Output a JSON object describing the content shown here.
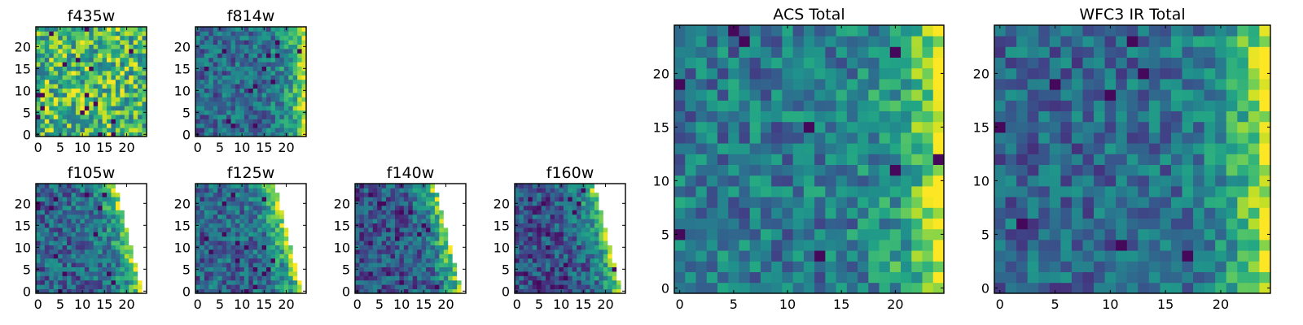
{
  "figure": {
    "colormap": "viridis",
    "nan_color": "#ffffff",
    "frame_color": "#000000",
    "background": "#ffffff"
  },
  "chart_data": [
    {
      "type": "heatmap",
      "id": "f435w",
      "title": "f435w",
      "grid": [
        25,
        25
      ],
      "xlim": [
        0,
        24
      ],
      "ylim": [
        0,
        24
      ],
      "grid_lines": false,
      "xticks": [
        0,
        5,
        10,
        15,
        20
      ],
      "yticks": [
        0,
        5,
        10,
        15,
        20
      ],
      "pattern": "noisy",
      "mean": 0.68,
      "noise": 0.32,
      "gradient": 0.0
    },
    {
      "type": "heatmap",
      "id": "f814w",
      "title": "f814w",
      "grid": [
        25,
        25
      ],
      "xlim": [
        0,
        24
      ],
      "ylim": [
        0,
        24
      ],
      "grid_lines": false,
      "xticks": [
        0,
        5,
        10,
        15,
        20
      ],
      "yticks": [
        0,
        5,
        10,
        15,
        20
      ],
      "pattern": "right-bright",
      "mean": 0.42,
      "noise": 0.22,
      "gradient": 0.6
    },
    {
      "type": "heatmap",
      "id": "f105w",
      "title": "f105w",
      "grid": [
        25,
        25
      ],
      "xlim": [
        0,
        24
      ],
      "ylim": [
        0,
        24
      ],
      "grid_lines": false,
      "xticks": [
        0,
        5,
        10,
        15,
        20
      ],
      "yticks": [
        0,
        5,
        10,
        15,
        20
      ],
      "pattern": "right-bright-masked",
      "mean": 0.4,
      "noise": 0.22,
      "gradient": 0.7,
      "masked_edge_x_at_bottom": 24,
      "masked_edge_x_at_top": 18
    },
    {
      "type": "heatmap",
      "id": "f125w",
      "title": "f125w",
      "grid": [
        25,
        25
      ],
      "xlim": [
        0,
        24
      ],
      "ylim": [
        0,
        24
      ],
      "grid_lines": false,
      "xticks": [
        0,
        5,
        10,
        15,
        20
      ],
      "yticks": [
        0,
        5,
        10,
        15,
        20
      ],
      "pattern": "right-bright-masked",
      "mean": 0.4,
      "noise": 0.22,
      "gradient": 0.7,
      "masked_edge_x_at_bottom": 24,
      "masked_edge_x_at_top": 18
    },
    {
      "type": "heatmap",
      "id": "f140w",
      "title": "f140w",
      "grid": [
        25,
        25
      ],
      "xlim": [
        0,
        24
      ],
      "ylim": [
        0,
        24
      ],
      "grid_lines": false,
      "xticks": [
        0,
        5,
        10,
        15,
        20
      ],
      "yticks": [
        0,
        5,
        10,
        15,
        20
      ],
      "pattern": "right-bright-masked",
      "mean": 0.33,
      "noise": 0.22,
      "gradient": 0.75,
      "masked_edge_x_at_bottom": 24,
      "masked_edge_x_at_top": 18
    },
    {
      "type": "heatmap",
      "id": "f160w",
      "title": "f160w",
      "grid": [
        25,
        25
      ],
      "xlim": [
        0,
        24
      ],
      "ylim": [
        0,
        24
      ],
      "grid_lines": false,
      "xticks": [
        0,
        5,
        10,
        15,
        20
      ],
      "yticks": [
        0,
        5,
        10,
        15,
        20
      ],
      "pattern": "right-bright-masked",
      "mean": 0.33,
      "noise": 0.22,
      "gradient": 0.75,
      "masked_edge_x_at_bottom": 24,
      "masked_edge_x_at_top": 18
    },
    {
      "type": "heatmap",
      "id": "acs-total",
      "title": "ACS Total",
      "grid": [
        25,
        25
      ],
      "xlim": [
        0,
        24
      ],
      "ylim": [
        0,
        24
      ],
      "grid_lines": false,
      "xticks": [
        0,
        5,
        10,
        15,
        20
      ],
      "yticks": [
        0,
        5,
        10,
        15,
        20
      ],
      "pattern": "right-bright",
      "mean": 0.48,
      "noise": 0.22,
      "gradient": 0.55
    },
    {
      "type": "heatmap",
      "id": "wfc3-ir-total",
      "title": "WFC3 IR Total",
      "grid": [
        25,
        25
      ],
      "xlim": [
        0,
        24
      ],
      "ylim": [
        0,
        24
      ],
      "grid_lines": false,
      "xticks": [
        0,
        5,
        10,
        15,
        20
      ],
      "yticks": [
        0,
        5,
        10,
        15,
        20
      ],
      "pattern": "right-bright",
      "mean": 0.42,
      "noise": 0.2,
      "gradient": 0.6
    }
  ]
}
